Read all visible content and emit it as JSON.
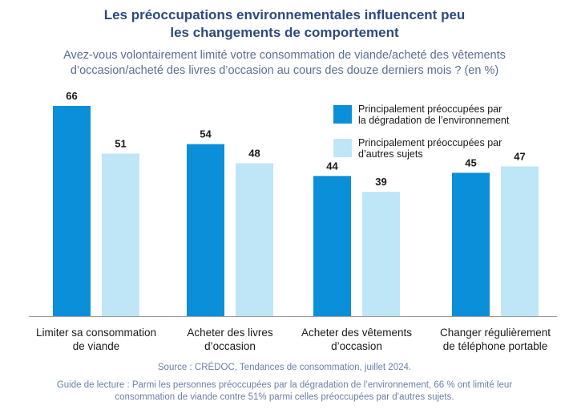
{
  "header": {
    "title_line1": "Les préoccupations environnementales influencent peu",
    "title_line2": "les changements de comportement",
    "subtitle_line1": "Avez-vous volontairement limité votre consommation de viande/acheté des vêtements",
    "subtitle_line2": "d’occasion/acheté des livres d’occasion au cours des douze derniers mois ? (en %)"
  },
  "footer": {
    "source": "Source : CRÉDOC, Tendances de consommation, juillet 2024.",
    "note_line1": "Guide de lecture : Parmi les personnes préoccupées par la dégradation de l’environnement, 66 % ont limité leur",
    "note_line2": "consommation de viande contre 51% parmi celles préoccupées par d’autres sujets."
  },
  "colors": {
    "series1": "#0a8fd8",
    "series2": "#bfe6f6",
    "value_label": "#1a1a1a",
    "category_label": "#1a1a1a",
    "axis": "#9a9a9a"
  },
  "chart_data": {
    "type": "bar",
    "title": "",
    "xlabel": "",
    "ylabel": "",
    "ylim": [
      0,
      70
    ],
    "grid": false,
    "legend_position": "top-right",
    "categories": [
      [
        "Limiter sa consommation",
        "de viande"
      ],
      [
        "Acheter des livres",
        "d’occasion"
      ],
      [
        "Acheter des vêtements",
        "d’occasion"
      ],
      [
        "Changer régulièrement",
        "de téléphone portable"
      ]
    ],
    "series": [
      {
        "name_lines": [
          "Principalement préoccupées par",
          "la dégradation de l’environnement"
        ],
        "values": [
          66,
          54,
          44,
          45
        ]
      },
      {
        "name_lines": [
          "Principalement préoccupées par",
          "d’autres sujets"
        ],
        "values": [
          51,
          48,
          39,
          47
        ]
      }
    ]
  }
}
